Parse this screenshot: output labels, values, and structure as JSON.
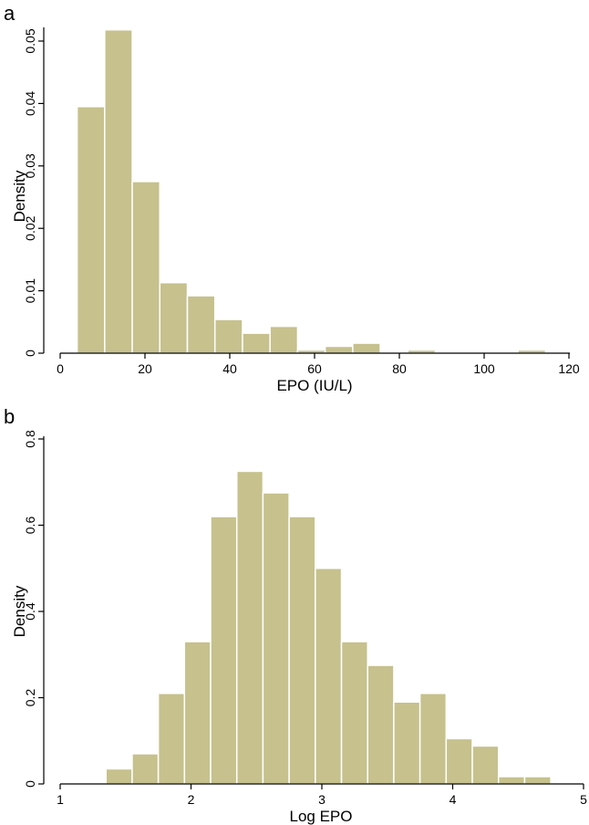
{
  "chart_data": [
    {
      "panel_label": "a",
      "type": "bar",
      "title": "",
      "xlabel": "EPO (IU/L)",
      "ylabel": "Density",
      "xlim": [
        0,
        120
      ],
      "ylim": [
        0,
        0.05
      ],
      "xticks": [
        0,
        20,
        40,
        60,
        80,
        100,
        120
      ],
      "xtick_labels": [
        "0",
        "20",
        "40",
        "60",
        "80",
        "100",
        "120"
      ],
      "yticks": [
        0,
        0.01,
        0.02,
        0.03,
        0.04,
        0.05
      ],
      "ytick_labels": [
        "0",
        "0.01",
        "0.02",
        "0.03",
        "0.04",
        "0.05"
      ],
      "grid": false,
      "bar_color": "#c6c18d",
      "bins": [
        {
          "x0": 4,
          "x1": 10.5,
          "value": 0.0395
        },
        {
          "x0": 10.5,
          "x1": 17,
          "value": 0.0518
        },
        {
          "x0": 17,
          "x1": 23.5,
          "value": 0.0275
        },
        {
          "x0": 23.5,
          "x1": 30,
          "value": 0.0113
        },
        {
          "x0": 30,
          "x1": 36.5,
          "value": 0.0092
        },
        {
          "x0": 36.5,
          "x1": 43,
          "value": 0.0054
        },
        {
          "x0": 43,
          "x1": 49.5,
          "value": 0.0032
        },
        {
          "x0": 49.5,
          "x1": 56,
          "value": 0.0043
        },
        {
          "x0": 56,
          "x1": 62.5,
          "value": 0.0005
        },
        {
          "x0": 62.5,
          "x1": 69,
          "value": 0.0011
        },
        {
          "x0": 69,
          "x1": 75.5,
          "value": 0.0016
        },
        {
          "x0": 75.5,
          "x1": 82,
          "value": 0
        },
        {
          "x0": 82,
          "x1": 88.5,
          "value": 0.0005
        },
        {
          "x0": 88.5,
          "x1": 95,
          "value": 0
        },
        {
          "x0": 95,
          "x1": 101.5,
          "value": 0
        },
        {
          "x0": 101.5,
          "x1": 108,
          "value": 0
        },
        {
          "x0": 108,
          "x1": 114.5,
          "value": 0.0005
        }
      ]
    },
    {
      "panel_label": "b",
      "type": "bar",
      "title": "",
      "xlabel": "Log EPO",
      "ylabel": "Density",
      "xlim": [
        1,
        5
      ],
      "ylim": [
        0,
        0.8
      ],
      "xticks": [
        1,
        2,
        3,
        4,
        5
      ],
      "xtick_labels": [
        "1",
        "2",
        "3",
        "4",
        "5"
      ],
      "yticks": [
        0,
        0.2,
        0.4,
        0.6,
        0.8
      ],
      "ytick_labels": [
        "0",
        "0.2",
        "0.4",
        "0.6",
        "0.8"
      ],
      "grid": false,
      "bar_color": "#c6c18d",
      "bins": [
        {
          "x0": 1.35,
          "x1": 1.55,
          "value": 0.035
        },
        {
          "x0": 1.55,
          "x1": 1.75,
          "value": 0.07
        },
        {
          "x0": 1.75,
          "x1": 1.95,
          "value": 0.21
        },
        {
          "x0": 1.95,
          "x1": 2.15,
          "value": 0.33
        },
        {
          "x0": 2.15,
          "x1": 2.35,
          "value": 0.62
        },
        {
          "x0": 2.35,
          "x1": 2.55,
          "value": 0.725
        },
        {
          "x0": 2.55,
          "x1": 2.75,
          "value": 0.675
        },
        {
          "x0": 2.75,
          "x1": 2.95,
          "value": 0.62
        },
        {
          "x0": 2.95,
          "x1": 3.15,
          "value": 0.5
        },
        {
          "x0": 3.15,
          "x1": 3.35,
          "value": 0.33
        },
        {
          "x0": 3.35,
          "x1": 3.55,
          "value": 0.275
        },
        {
          "x0": 3.55,
          "x1": 3.75,
          "value": 0.19
        },
        {
          "x0": 3.75,
          "x1": 3.95,
          "value": 0.21
        },
        {
          "x0": 3.95,
          "x1": 4.15,
          "value": 0.105
        },
        {
          "x0": 4.15,
          "x1": 4.35,
          "value": 0.088
        },
        {
          "x0": 4.35,
          "x1": 4.55,
          "value": 0.017
        },
        {
          "x0": 4.55,
          "x1": 4.75,
          "value": 0.017
        }
      ]
    }
  ]
}
